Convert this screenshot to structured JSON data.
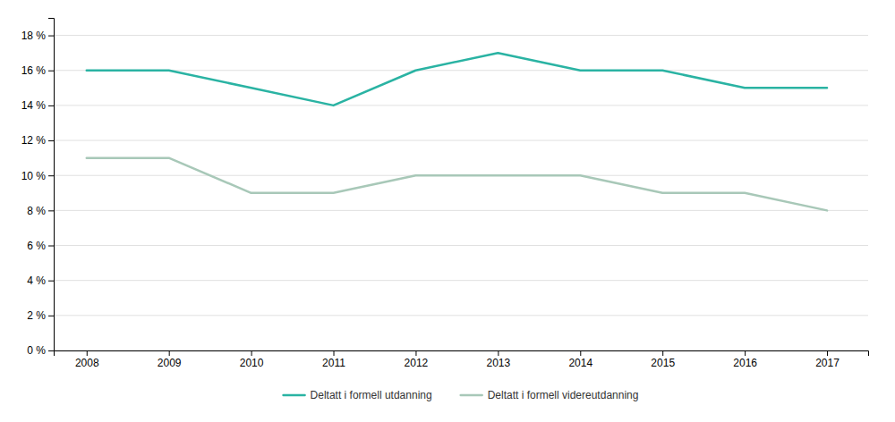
{
  "chart_data": {
    "type": "line",
    "x": [
      2008,
      2009,
      2010,
      2011,
      2012,
      2013,
      2014,
      2015,
      2016,
      2017
    ],
    "series": [
      {
        "name": "Deltatt i formell utdanning",
        "color": "#2ab3a3",
        "values": [
          16,
          16,
          15,
          14,
          16,
          17,
          16,
          16,
          15,
          15
        ]
      },
      {
        "name": "Deltatt i formell videreutdanning",
        "color": "#a8c8b8",
        "values": [
          11,
          11,
          9,
          9,
          10,
          10,
          10,
          9,
          9,
          8
        ]
      }
    ],
    "xlim": [
      2007.6,
      2017.5
    ],
    "xticks": [
      2008,
      2009,
      2010,
      2011,
      2012,
      2013,
      2014,
      2015,
      2016,
      2017
    ],
    "ylim": [
      0,
      19
    ],
    "yticks": [
      {
        "value": 0,
        "label": "0 %"
      },
      {
        "value": 2,
        "label": "2 %"
      },
      {
        "value": 4,
        "label": "4 %"
      },
      {
        "value": 6,
        "label": "6 %"
      },
      {
        "value": 8,
        "label": "8 %"
      },
      {
        "value": 10,
        "label": "10 %"
      },
      {
        "value": 12,
        "label": "12 %"
      },
      {
        "value": 14,
        "label": "14 %"
      },
      {
        "value": 16,
        "label": "16 %"
      },
      {
        "value": 18,
        "label": "18 %"
      }
    ],
    "grid": true,
    "legend": "bottom"
  }
}
